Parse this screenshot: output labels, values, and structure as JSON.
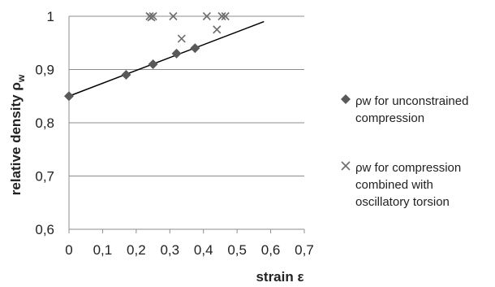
{
  "chart_data": {
    "type": "scatter",
    "xlabel": "strain ε",
    "ylabel": "relative density ρ",
    "ylabel_sub": "w",
    "xlim": [
      0,
      0.7
    ],
    "ylim": [
      0.6,
      1.0
    ],
    "x_ticks": [
      "0",
      "0,1",
      "0,2",
      "0,3",
      "0,4",
      "0,5",
      "0,6",
      "0,7"
    ],
    "y_ticks": [
      "0,6",
      "0,7",
      "0,8",
      "0,9",
      "1"
    ],
    "grid": "horizontal",
    "legend_position": "right",
    "series": [
      {
        "name": "ρw   for unconstrained compression",
        "marker": "diamond",
        "color": "#595959",
        "points": [
          [
            0,
            0.85
          ],
          [
            0.17,
            0.89
          ],
          [
            0.25,
            0.91
          ],
          [
            0.32,
            0.93
          ],
          [
            0.375,
            0.94
          ]
        ]
      },
      {
        "name": "ρw   for compression combined with oscillatory torsion",
        "marker": "x",
        "color": "#6e6e6e",
        "points": [
          [
            0.24,
            1.0
          ],
          [
            0.25,
            1.0
          ],
          [
            0.245,
            0.998
          ],
          [
            0.31,
            1.0
          ],
          [
            0.335,
            0.958
          ],
          [
            0.41,
            1.0
          ],
          [
            0.44,
            0.975
          ],
          [
            0.455,
            1.0
          ],
          [
            0.465,
            1.0
          ]
        ]
      }
    ],
    "trendline": {
      "series": 0,
      "x": [
        0,
        0.58
      ],
      "y": [
        0.85,
        0.99
      ],
      "color": "#000000"
    }
  }
}
